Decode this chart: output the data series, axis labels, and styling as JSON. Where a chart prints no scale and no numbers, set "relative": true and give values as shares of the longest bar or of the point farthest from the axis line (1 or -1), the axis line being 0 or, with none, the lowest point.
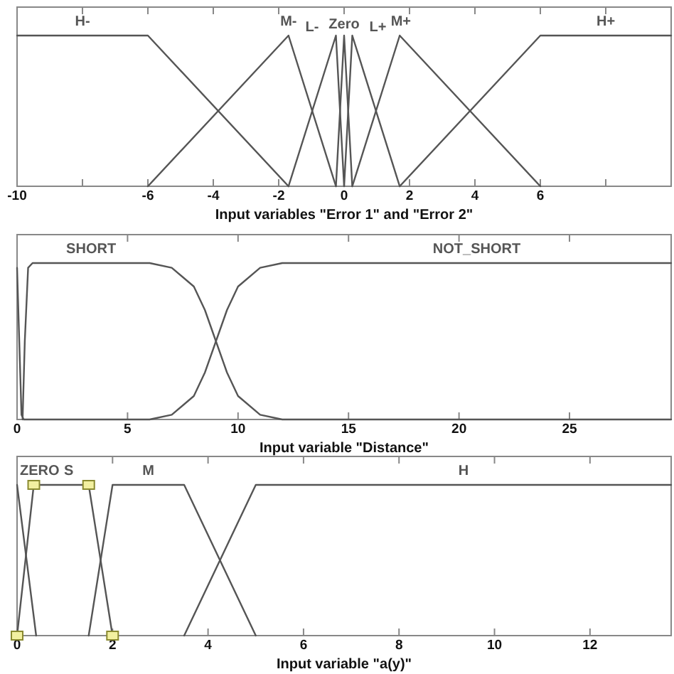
{
  "chart_data": [
    {
      "type": "line",
      "xlabel": "Input variables \"Error 1\" and \"Error 2\"",
      "relative": true,
      "xlim": [
        -10,
        10
      ],
      "xticks": [
        {
          "value": -10,
          "label": "-10"
        },
        {
          "value": -8,
          "label": null
        },
        -6,
        -4,
        -2,
        0,
        2,
        4,
        6,
        {
          "value": 8,
          "label": null
        }
      ],
      "legend": false,
      "grid": false,
      "series": [
        {
          "name": "H-",
          "color": "#555555",
          "x": [
            -10,
            -6,
            -1.7
          ],
          "values": [
            1,
            1,
            0
          ]
        },
        {
          "name": "M-",
          "color": "#555555",
          "x": [
            -6,
            -1.7,
            -0.25
          ],
          "values": [
            0,
            1,
            0
          ]
        },
        {
          "name": "L-",
          "color": "#555555",
          "x": [
            -1.7,
            -0.25,
            0
          ],
          "values": [
            0,
            1,
            0
          ]
        },
        {
          "name": "Zero",
          "color": "#555555",
          "x": [
            -0.25,
            0,
            0.25
          ],
          "values": [
            0,
            1,
            0
          ]
        },
        {
          "name": "L+",
          "color": "#555555",
          "x": [
            0,
            0.25,
            1.7
          ],
          "values": [
            0,
            1,
            0
          ]
        },
        {
          "name": "M+",
          "color": "#555555",
          "x": [
            0.25,
            1.7,
            6
          ],
          "values": [
            0,
            1,
            0
          ]
        },
        {
          "name": "H+",
          "color": "#555555",
          "x": [
            1.7,
            6,
            10
          ],
          "values": [
            0,
            1,
            1
          ]
        }
      ]
    },
    {
      "type": "line",
      "xlabel": "Input variable \"Distance\"",
      "relative": true,
      "xlim": [
        0,
        29.6
      ],
      "xticks": [
        0,
        5,
        10,
        15,
        20,
        25
      ],
      "legend": false,
      "grid": false,
      "series": [
        {
          "name": "SHORT",
          "color": "#555555",
          "x": [
            0.25,
            0.35,
            0.5,
            0.7,
            6,
            7,
            8,
            8.5,
            9,
            9.5,
            10,
            11,
            12,
            29.6
          ],
          "values": [
            0,
            0.5,
            0.97,
            1,
            1,
            0.97,
            0.85,
            0.7,
            0.5,
            0.3,
            0.15,
            0.03,
            0,
            0
          ]
        },
        {
          "name": "NOT_SHORT",
          "color": "#555555",
          "x": [
            0,
            0.1,
            0.2,
            0.3,
            6,
            7,
            8,
            8.5,
            9,
            9.5,
            10,
            11,
            12,
            29.6
          ],
          "values": [
            0.97,
            0.5,
            0.03,
            0,
            0,
            0.03,
            0.15,
            0.3,
            0.5,
            0.7,
            0.85,
            0.97,
            1,
            1
          ]
        }
      ]
    },
    {
      "type": "line",
      "xlabel": "Input variable \"a(y)\"",
      "relative": true,
      "xlim": [
        0,
        13.7
      ],
      "xticks": [
        0,
        2,
        4,
        6,
        8,
        10,
        12
      ],
      "legend": false,
      "grid": false,
      "series": [
        {
          "name": "ZERO",
          "color": "#555555",
          "x": [
            0,
            0.4
          ],
          "values": [
            1,
            0
          ]
        },
        {
          "name": "S",
          "color": "#555555",
          "marker": "square",
          "x": [
            0,
            0.35,
            1.5,
            2
          ],
          "values": [
            0,
            1,
            1,
            0
          ]
        },
        {
          "name": "M",
          "color": "#555555",
          "x": [
            1.5,
            2,
            3.5,
            5
          ],
          "values": [
            0,
            1,
            1,
            0
          ]
        },
        {
          "name": "H",
          "color": "#555555",
          "x": [
            3.5,
            5,
            13.7
          ],
          "values": [
            0,
            1,
            1
          ]
        }
      ]
    }
  ]
}
